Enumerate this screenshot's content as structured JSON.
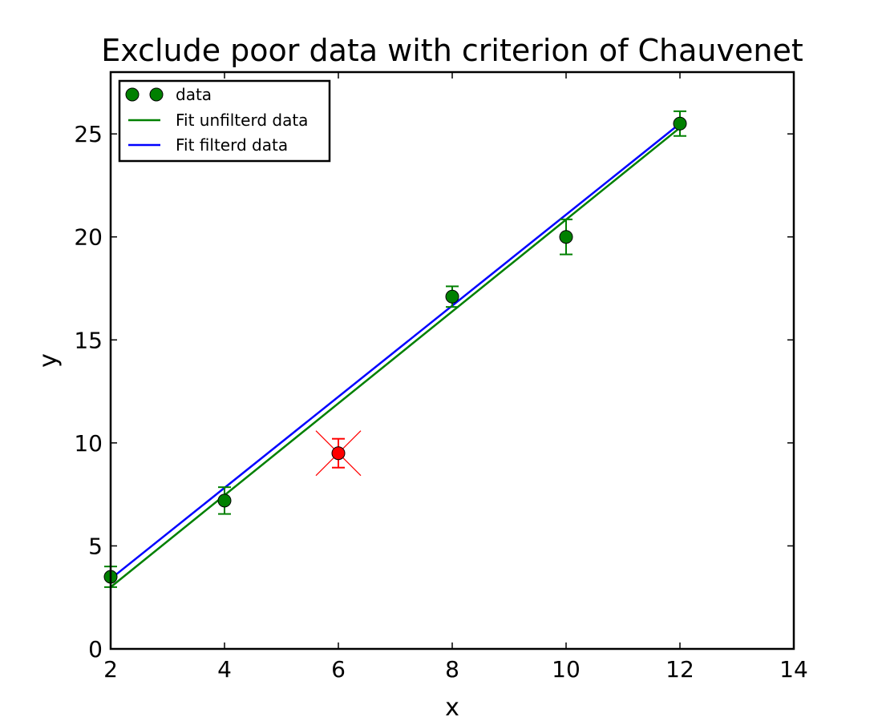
{
  "chart_data": {
    "type": "scatter",
    "title": "Exclude poor data with criterion of Chauvenet",
    "xlabel": "x",
    "ylabel": "y",
    "xlim": [
      2,
      14
    ],
    "ylim": [
      0,
      28
    ],
    "xticks": [
      2,
      4,
      6,
      8,
      10,
      12,
      14
    ],
    "yticks": [
      0,
      5,
      10,
      15,
      20,
      25
    ],
    "grid": false,
    "legend_position": "top-left",
    "points": [
      {
        "x": 2,
        "y": 3.5,
        "yerr": 0.5,
        "excluded": false
      },
      {
        "x": 4,
        "y": 7.2,
        "yerr": 0.65,
        "excluded": false
      },
      {
        "x": 6,
        "y": 9.5,
        "yerr": 0.7,
        "excluded": true
      },
      {
        "x": 8,
        "y": 17.1,
        "yerr": 0.5,
        "excluded": false
      },
      {
        "x": 10,
        "y": 20.0,
        "yerr": 0.85,
        "excluded": false
      },
      {
        "x": 12,
        "y": 25.5,
        "yerr": 0.6,
        "excluded": false
      }
    ],
    "series": [
      {
        "name": "data",
        "kind": "markers",
        "color": "#008000"
      },
      {
        "name": "Fit unfilterd data",
        "kind": "line",
        "color": "#008000",
        "x": [
          2,
          12
        ],
        "y": [
          3.0,
          25.3
        ]
      },
      {
        "name": "Fit filterd data",
        "kind": "line",
        "color": "#0000ff",
        "x": [
          2,
          12
        ],
        "y": [
          3.4,
          25.5
        ]
      }
    ],
    "excluded_color": "#ff0000"
  }
}
